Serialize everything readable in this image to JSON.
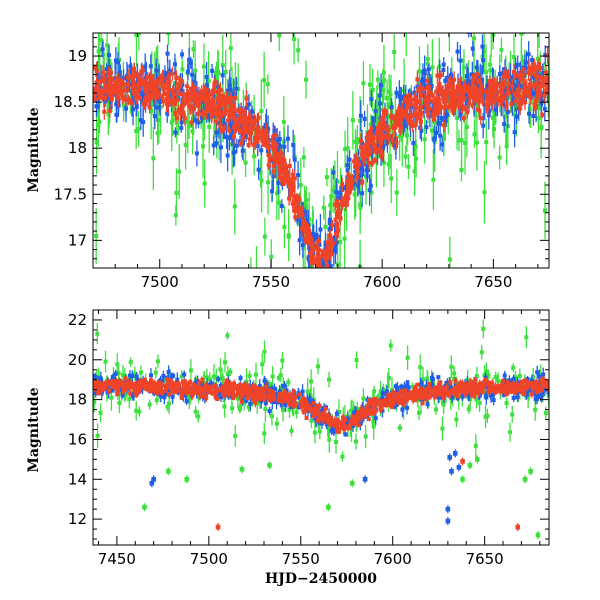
{
  "colors": {
    "green": "#3ee03e",
    "blue": "#1f5ee8",
    "red": "#f04428"
  },
  "chart_data": [
    {
      "type": "scatter",
      "title": "",
      "xlabel": "",
      "ylabel": "Magnitude",
      "xlim": [
        7470,
        7675
      ],
      "ylim": [
        19.25,
        16.7
      ],
      "y_inverted": true,
      "grid": false,
      "legend": "none",
      "xticks": [
        "7500",
        "7550",
        "7600",
        "7650"
      ],
      "yticks": [
        "17",
        "17.5",
        "18",
        "18.5",
        "19"
      ],
      "x_tick_values": [
        7500,
        7550,
        7600,
        7650
      ],
      "y_tick_values": [
        17,
        17.5,
        18,
        18.5,
        19
      ],
      "series_colors": [
        "green",
        "blue",
        "red"
      ],
      "event": {
        "peak_hjd": 7572,
        "peak_mag": 16.75,
        "baseline_mag": 18.9
      }
    },
    {
      "type": "scatter",
      "title": "",
      "xlabel": "HJD−2450000",
      "ylabel": "Magnitude",
      "xlim": [
        7437,
        7685
      ],
      "ylim": [
        22.5,
        10.7
      ],
      "y_inverted": true,
      "grid": false,
      "legend": "none",
      "xticks": [
        "7450",
        "7500",
        "7550",
        "7600",
        "7650"
      ],
      "yticks": [
        "12",
        "14",
        "16",
        "18",
        "20",
        "22"
      ],
      "x_tick_values": [
        7450,
        7500,
        7550,
        7600,
        7650
      ],
      "y_tick_values": [
        12,
        14,
        16,
        18,
        20,
        22
      ],
      "series_colors": [
        "green",
        "blue",
        "red"
      ],
      "event": {
        "peak_hjd": 7572,
        "peak_mag": 16.7,
        "baseline_mag": 18.9
      },
      "outliers": {
        "green": [
          [
            7465,
            12.6
          ],
          [
            7478,
            14.4
          ],
          [
            7488,
            14.0
          ],
          [
            7518,
            14.5
          ],
          [
            7533,
            14.7
          ],
          [
            7565,
            12.6
          ],
          [
            7578,
            13.8
          ],
          [
            7638,
            14.0
          ],
          [
            7642,
            14.7
          ],
          [
            7646,
            15.0
          ],
          [
            7672,
            14.0
          ],
          [
            7675,
            14.4
          ],
          [
            7679,
            11.2
          ]
        ],
        "blue": [
          [
            7469,
            13.8
          ],
          [
            7470,
            14.0
          ],
          [
            7630,
            11.9
          ],
          [
            7630,
            12.5
          ],
          [
            7632,
            14.4
          ],
          [
            7631,
            15.1
          ],
          [
            7634,
            15.3
          ],
          [
            7636,
            14.6
          ],
          [
            7585,
            14.0
          ]
        ],
        "red": [
          [
            7505,
            11.6
          ],
          [
            7668,
            11.6
          ],
          [
            7638,
            14.9
          ]
        ]
      }
    }
  ]
}
